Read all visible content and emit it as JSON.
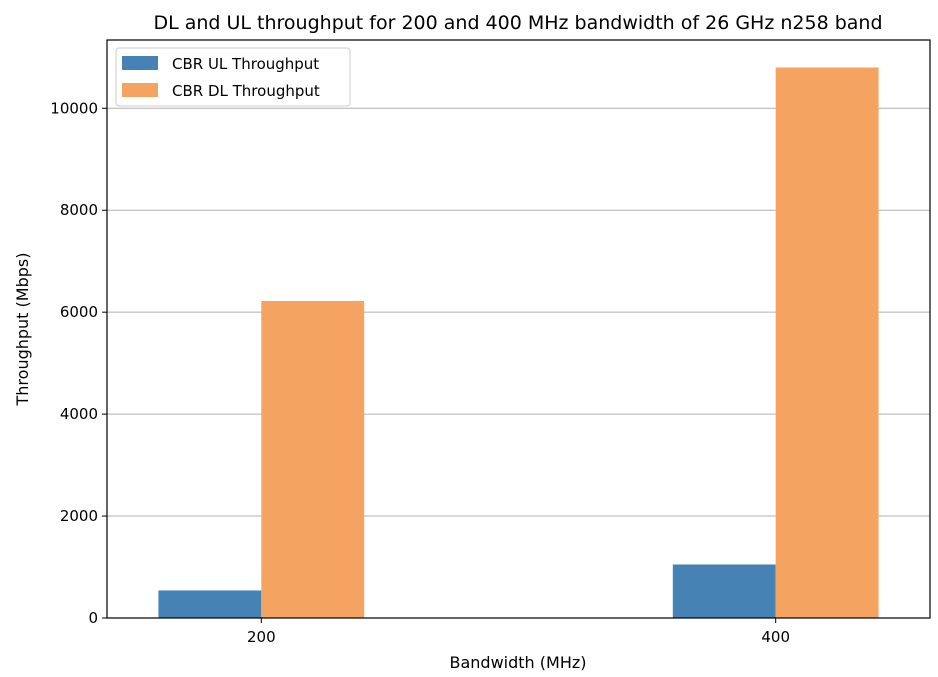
{
  "chart_data": {
    "type": "bar",
    "title": "DL and UL throughput for 200 and 400 MHz bandwidth of 26 GHz n258 band",
    "xlabel": "Bandwidth (MHz)",
    "ylabel": "Throughput (Mbps)",
    "categories": [
      "200",
      "400"
    ],
    "series": [
      {
        "name": "CBR UL Throughput",
        "color": "#4682b4",
        "values": [
          540,
          1050
        ]
      },
      {
        "name": "CBR DL Throughput",
        "color": "#f4a460",
        "values": [
          6220,
          10800
        ]
      }
    ],
    "ylim": [
      0,
      11340
    ],
    "yticks": [
      0,
      2000,
      4000,
      6000,
      8000,
      10000
    ],
    "ytick_labels": [
      "0",
      "2000",
      "4000",
      "6000",
      "8000",
      "10000"
    ],
    "grid": "y",
    "legend_position": "top-left"
  }
}
